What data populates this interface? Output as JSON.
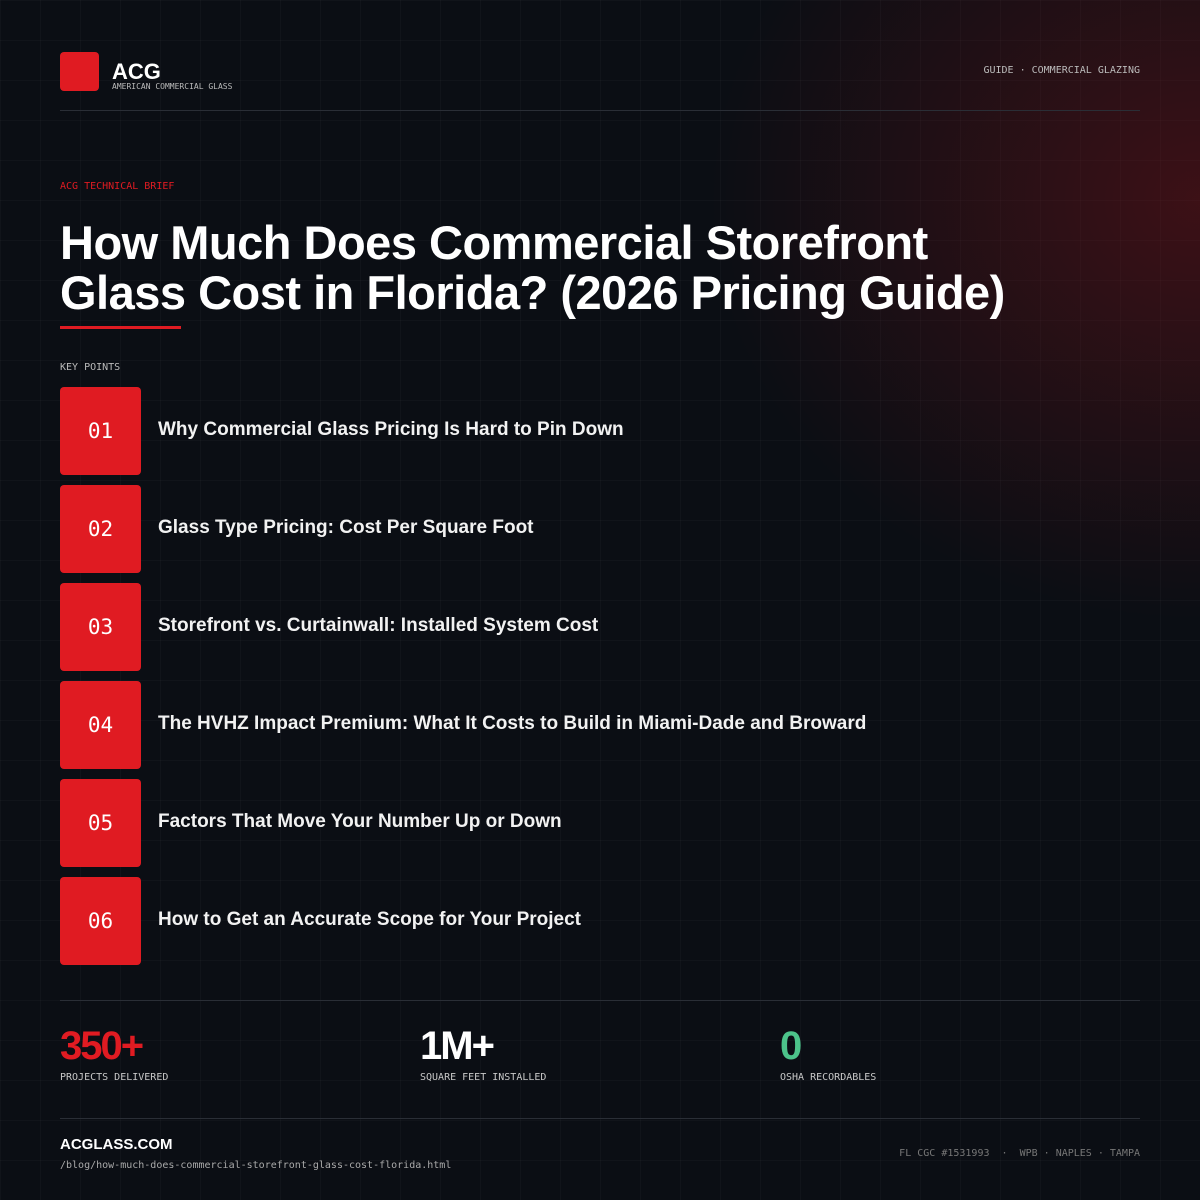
{
  "header": {
    "logo": "ACG",
    "logo_subtitle": "AMERICAN COMMERCIAL GLASS",
    "tag": "GUIDE · COMMERCIAL GLAZING"
  },
  "eyebrow": "ACG TECHNICAL BRIEF",
  "title_lines": [
    "How Much Does Commercial Storefront",
    "Glass Cost in Florida? (2026 Pricing Guide)"
  ],
  "key_points": {
    "label": "KEY POINTS",
    "items": [
      {
        "number": "01",
        "text": "Why Commercial Glass Pricing Is Hard to Pin Down"
      },
      {
        "number": "02",
        "text": "Glass Type Pricing: Cost Per Square Foot"
      },
      {
        "number": "03",
        "text": "Storefront vs. Curtainwall: Installed System Cost"
      },
      {
        "number": "04",
        "text": "The HVHZ Impact Premium: What It Costs to Build in Miami-Dade and Broward"
      },
      {
        "number": "05",
        "text": "Factors That Move Your Number Up or Down"
      },
      {
        "number": "06",
        "text": "How to Get an Accurate Scope for Your Project"
      }
    ]
  },
  "stats": [
    {
      "value": "350+",
      "label": "PROJECTS DELIVERED"
    },
    {
      "value": "1M+",
      "label": "SQUARE FEET INSTALLED"
    },
    {
      "value": "0",
      "label": "OSHA RECORDABLES"
    }
  ],
  "footer": {
    "site": "ACGLASS.COM",
    "path": "/blog/how-much-does-commercial-storefront-glass-cost-florida.html",
    "meta": "FL CGC #1531993  ·  WPB · NAPLES · TAMPA"
  }
}
